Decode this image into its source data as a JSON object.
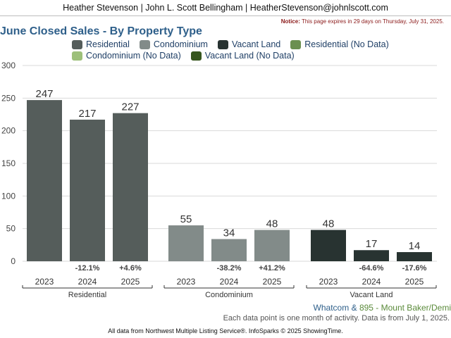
{
  "header": {
    "contact": "Heather Stevenson | John L. Scott Bellingham | HeatherStevenson@johnlscott.com",
    "notice_label": "Notice:",
    "notice_text": "This page expires in 29 days on Thursday, July 31, 2025."
  },
  "colors": {
    "residential": "#555d5b",
    "condominium": "#828b89",
    "vacant_land": "#283331",
    "residential_nodata": "#6b9050",
    "condominium_nodata": "#9dc07a",
    "vacant_land_nodata": "#36561e",
    "title": "#2e5f8a"
  },
  "chart_data": {
    "type": "bar",
    "title": "June Closed Sales - By Property Type",
    "legend": [
      {
        "name": "Residential",
        "color": "#555d5b"
      },
      {
        "name": "Condominium",
        "color": "#828b89"
      },
      {
        "name": "Vacant Land",
        "color": "#283331"
      },
      {
        "name": "Residential (No Data)",
        "color": "#6b9050"
      },
      {
        "name": "Condominium (No Data)",
        "color": "#9dc07a"
      },
      {
        "name": "Vacant Land (No Data)",
        "color": "#36561e"
      }
    ],
    "ylim": [
      0,
      300
    ],
    "yticks": [
      0,
      50,
      100,
      150,
      200,
      250,
      300
    ],
    "grid": true,
    "groups": [
      {
        "name": "Residential",
        "color": "#555d5b",
        "bars": [
          {
            "year": "2023",
            "value": 247,
            "change": ""
          },
          {
            "year": "2024",
            "value": 217,
            "change": "-12.1%"
          },
          {
            "year": "2025",
            "value": 227,
            "change": "+4.6%"
          }
        ]
      },
      {
        "name": "Condominium",
        "color": "#828b89",
        "bars": [
          {
            "year": "2023",
            "value": 55,
            "change": ""
          },
          {
            "year": "2024",
            "value": 34,
            "change": "-38.2%"
          },
          {
            "year": "2025",
            "value": 48,
            "change": "+41.2%"
          }
        ]
      },
      {
        "name": "Vacant Land",
        "color": "#283331",
        "bars": [
          {
            "year": "2023",
            "value": 48,
            "change": ""
          },
          {
            "year": "2024",
            "value": 17,
            "change": "-64.6%"
          },
          {
            "year": "2025",
            "value": 14,
            "change": "-17.6%"
          }
        ]
      }
    ]
  },
  "area": {
    "primary": "Whatcom",
    "separator": "&",
    "secondary": "895 - Mount Baker/Demi"
  },
  "data_note": "Each data point is one month of activity. Data is from July 1, 2025.",
  "footer": "All data from Northwest Multiple Listing Service®. InfoSparks © 2025 ShowingTime."
}
